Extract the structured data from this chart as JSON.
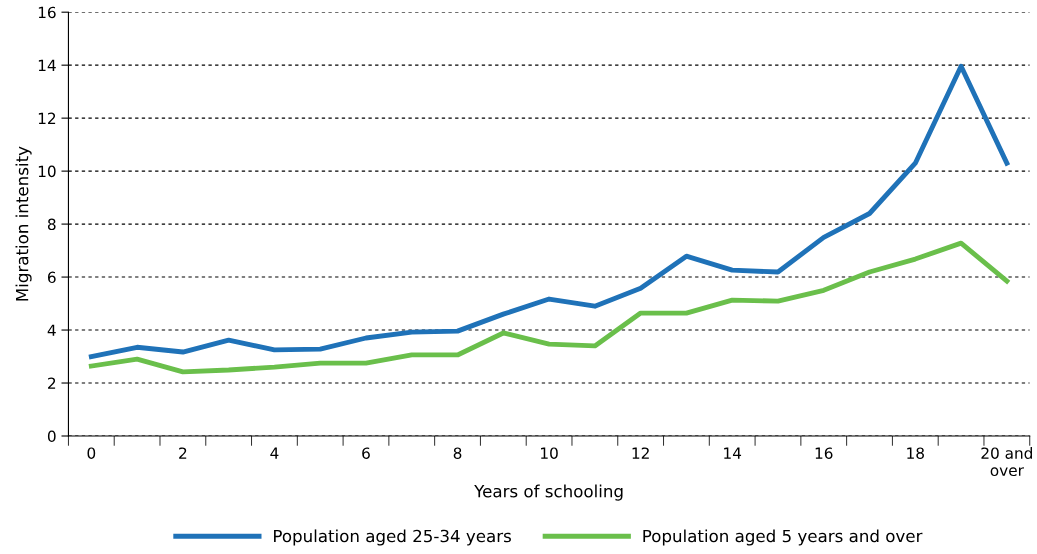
{
  "chart_data": {
    "type": "line",
    "xlabel": "Years of schooling",
    "ylabel": "Migration intensity",
    "categories": [
      "0",
      null,
      "2",
      null,
      "4",
      null,
      "6",
      null,
      "8",
      null,
      "10",
      null,
      "12",
      null,
      "14",
      null,
      "16",
      null,
      "18",
      null,
      "20 and\nover"
    ],
    "series": [
      {
        "name": "Population aged 25-34 years",
        "color": "#1f72b8",
        "values": [
          3.0,
          3.35,
          3.17,
          3.62,
          3.25,
          3.28,
          3.7,
          3.92,
          3.96,
          4.6,
          5.17,
          4.9,
          5.58,
          6.79,
          6.26,
          6.19,
          7.5,
          8.4,
          10.3,
          13.96,
          10.3
        ]
      },
      {
        "name": "Population aged 5 years and over",
        "color": "#6abf4b",
        "values": [
          2.64,
          2.9,
          2.42,
          2.49,
          2.6,
          2.75,
          2.75,
          3.06,
          3.06,
          3.89,
          3.47,
          3.4,
          4.64,
          4.64,
          5.13,
          5.09,
          5.5,
          6.19,
          6.68,
          7.28,
          5.85
        ]
      }
    ],
    "ylim": [
      0,
      16
    ],
    "yticks": [
      0,
      2,
      4,
      6,
      8,
      10,
      12,
      14,
      16
    ],
    "grid": "y",
    "legend": "bottom",
    "marker": "none",
    "line_style": "solid"
  }
}
